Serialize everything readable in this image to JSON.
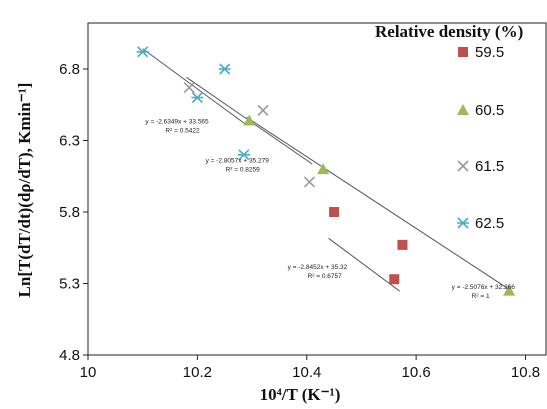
{
  "chart_data": {
    "type": "scatter",
    "xlabel": "10⁴/T (K⁻¹)",
    "ylabel": "Ln[T(dT/dt)(dρ/dT), Kmin⁻¹]",
    "xlim": [
      10,
      10.8
    ],
    "ylim": [
      4.8,
      7.0
    ],
    "xticks": [
      "10",
      "10.2",
      "10.4",
      "10.6",
      "10.8"
    ],
    "yticks": [
      "4.8",
      "5.3",
      "5.8",
      "6.3",
      "6.8"
    ],
    "grid": false,
    "legend_title": "Relative density (%)",
    "legend_position": "right",
    "series": [
      {
        "name": "59.5",
        "marker": "square",
        "color": "#c0504d",
        "x": [
          10.45,
          10.56,
          10.575
        ],
        "y": [
          5.8,
          5.33,
          5.57
        ],
        "fit": {
          "equation": "y = -2.8452x + 35.32",
          "r2": "R² = 0.6757",
          "x_range": [
            10.44,
            10.57
          ]
        }
      },
      {
        "name": "60.5",
        "marker": "triangle",
        "color": "#9bbb59",
        "x": [
          10.295,
          10.43,
          10.77
        ],
        "y": [
          6.44,
          6.1,
          5.25
        ],
        "fit": {
          "equation": "y = -2.5076x + 32.266",
          "r2": "R² = 1",
          "x_range": [
            10.29,
            10.77
          ]
        }
      },
      {
        "name": "61.5",
        "marker": "x",
        "color": "#9a9a9a",
        "x": [
          10.185,
          10.32,
          10.405
        ],
        "y": [
          6.67,
          6.51,
          6.01
        ],
        "fit": {
          "equation": "y = -2.6349x + 33.565",
          "r2": "R² = 0.5422",
          "x_range": [
            10.18,
            10.41
          ]
        }
      },
      {
        "name": "62.5",
        "marker": "asterisk",
        "color": "#4bacc6",
        "x": [
          10.1,
          10.2,
          10.25,
          10.285
        ],
        "y": [
          6.92,
          6.6,
          6.8,
          6.2
        ],
        "fit": {
          "equation": "y = -2.8057x + 35.279",
          "r2": "R² = 0.8259",
          "x_range": [
            10.1,
            10.29
          ]
        }
      }
    ]
  }
}
